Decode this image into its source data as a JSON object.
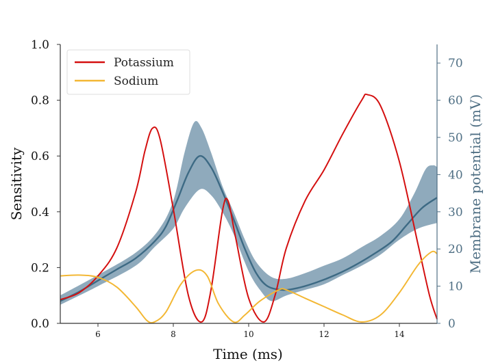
{
  "chart_data": {
    "type": "line",
    "xlabel": "Time (ms)",
    "ylabel_left": "Sensitivity",
    "ylabel_right": "Membrane potential (mV)",
    "xlim": [
      5,
      15
    ],
    "ylim_left": [
      0,
      1
    ],
    "ylim_right": [
      0,
      75
    ],
    "x_ticks": [
      6,
      8,
      10,
      12,
      14
    ],
    "y_ticks_left": [
      "0.0",
      "0.2",
      "0.4",
      "0.6",
      "0.8",
      "1.0"
    ],
    "y_ticks_right": [
      "0",
      "10",
      "20",
      "30",
      "40",
      "50",
      "60",
      "70"
    ],
    "grid": false,
    "legend": {
      "placement": "top-left"
    },
    "series": [
      {
        "name": "Potassium",
        "axis": "left",
        "color": "#d40f0f",
        "points": [
          [
            5.0,
            0.085
          ],
          [
            5.5,
            0.11
          ],
          [
            6.0,
            0.17
          ],
          [
            6.5,
            0.27
          ],
          [
            7.0,
            0.47
          ],
          [
            7.25,
            0.62
          ],
          [
            7.45,
            0.7
          ],
          [
            7.65,
            0.66
          ],
          [
            8.0,
            0.41
          ],
          [
            8.4,
            0.1
          ],
          [
            8.75,
            0.005
          ],
          [
            9.0,
            0.12
          ],
          [
            9.3,
            0.4
          ],
          [
            9.45,
            0.44
          ],
          [
            9.65,
            0.31
          ],
          [
            10.0,
            0.09
          ],
          [
            10.4,
            0.005
          ],
          [
            10.7,
            0.1
          ],
          [
            11.0,
            0.27
          ],
          [
            11.5,
            0.44
          ],
          [
            12.0,
            0.55
          ],
          [
            12.5,
            0.68
          ],
          [
            13.0,
            0.8
          ],
          [
            13.15,
            0.82
          ],
          [
            13.5,
            0.78
          ],
          [
            14.0,
            0.58
          ],
          [
            14.5,
            0.28
          ],
          [
            14.8,
            0.1
          ],
          [
            15.0,
            0.015
          ]
        ]
      },
      {
        "name": "Sodium",
        "axis": "left",
        "color": "#f3b733",
        "points": [
          [
            5.0,
            0.17
          ],
          [
            5.5,
            0.173
          ],
          [
            6.0,
            0.165
          ],
          [
            6.5,
            0.13
          ],
          [
            7.0,
            0.06
          ],
          [
            7.3,
            0.01
          ],
          [
            7.5,
            0.005
          ],
          [
            7.8,
            0.04
          ],
          [
            8.2,
            0.14
          ],
          [
            8.6,
            0.19
          ],
          [
            8.9,
            0.17
          ],
          [
            9.2,
            0.07
          ],
          [
            9.6,
            0.005
          ],
          [
            9.9,
            0.03
          ],
          [
            10.3,
            0.08
          ],
          [
            10.8,
            0.12
          ],
          [
            11.0,
            0.12
          ],
          [
            11.5,
            0.09
          ],
          [
            12.0,
            0.06
          ],
          [
            12.5,
            0.03
          ],
          [
            13.0,
            0.005
          ],
          [
            13.5,
            0.03
          ],
          [
            14.0,
            0.11
          ],
          [
            14.5,
            0.21
          ],
          [
            14.85,
            0.256
          ],
          [
            15.0,
            0.25
          ]
        ]
      },
      {
        "name": "",
        "axis": "right",
        "color": "#3d6a84",
        "band_color": "#7b9bb0",
        "points": [
          [
            5.0,
            6.0
          ],
          [
            5.5,
            8.5
          ],
          [
            6.0,
            11.5
          ],
          [
            6.5,
            14.5
          ],
          [
            7.0,
            17.5
          ],
          [
            7.5,
            22.0
          ],
          [
            7.8,
            26.0
          ],
          [
            8.1,
            33.0
          ],
          [
            8.4,
            40.5
          ],
          [
            8.7,
            45.0
          ],
          [
            9.0,
            42.0
          ],
          [
            9.3,
            35.5
          ],
          [
            9.6,
            28.0
          ],
          [
            9.9,
            20.0
          ],
          [
            10.2,
            13.5
          ],
          [
            10.5,
            10.0
          ],
          [
            10.9,
            9.0
          ],
          [
            11.3,
            9.5
          ],
          [
            11.8,
            11.0
          ],
          [
            12.3,
            13.0
          ],
          [
            12.8,
            15.5
          ],
          [
            13.3,
            18.5
          ],
          [
            13.8,
            22.0
          ],
          [
            14.2,
            26.5
          ],
          [
            14.6,
            31.0
          ],
          [
            15.0,
            33.8
          ]
        ],
        "band_lower": [
          [
            5.0,
            5.0
          ],
          [
            6.0,
            10.0
          ],
          [
            7.0,
            15.5
          ],
          [
            7.5,
            20.5
          ],
          [
            8.0,
            25.5
          ],
          [
            8.3,
            31.0
          ],
          [
            8.7,
            36.0
          ],
          [
            9.0,
            34.5
          ],
          [
            9.3,
            30.0
          ],
          [
            9.6,
            24.0
          ],
          [
            10.0,
            14.0
          ],
          [
            10.3,
            9.0
          ],
          [
            10.6,
            6.0
          ],
          [
            11.0,
            7.5
          ],
          [
            11.5,
            9.0
          ],
          [
            12.0,
            10.5
          ],
          [
            12.5,
            13.0
          ],
          [
            13.0,
            15.5
          ],
          [
            13.5,
            18.5
          ],
          [
            14.0,
            22.5
          ],
          [
            14.5,
            25.5
          ],
          [
            15.0,
            27.0
          ]
        ],
        "band_upper": [
          [
            5.0,
            7.5
          ],
          [
            6.0,
            13.0
          ],
          [
            7.0,
            19.0
          ],
          [
            7.6,
            25.0
          ],
          [
            8.0,
            33.0
          ],
          [
            8.3,
            46.0
          ],
          [
            8.55,
            54.0
          ],
          [
            8.75,
            52.5
          ],
          [
            9.0,
            46.0
          ],
          [
            9.3,
            37.0
          ],
          [
            9.6,
            30.0
          ],
          [
            9.9,
            22.5
          ],
          [
            10.2,
            16.5
          ],
          [
            10.6,
            12.5
          ],
          [
            11.0,
            12.0
          ],
          [
            11.5,
            13.5
          ],
          [
            12.0,
            15.5
          ],
          [
            12.5,
            17.5
          ],
          [
            13.0,
            20.5
          ],
          [
            13.5,
            23.5
          ],
          [
            14.0,
            28.0
          ],
          [
            14.4,
            35.0
          ],
          [
            14.7,
            41.5
          ],
          [
            14.9,
            42.5
          ],
          [
            15.0,
            42.0
          ]
        ]
      }
    ]
  }
}
